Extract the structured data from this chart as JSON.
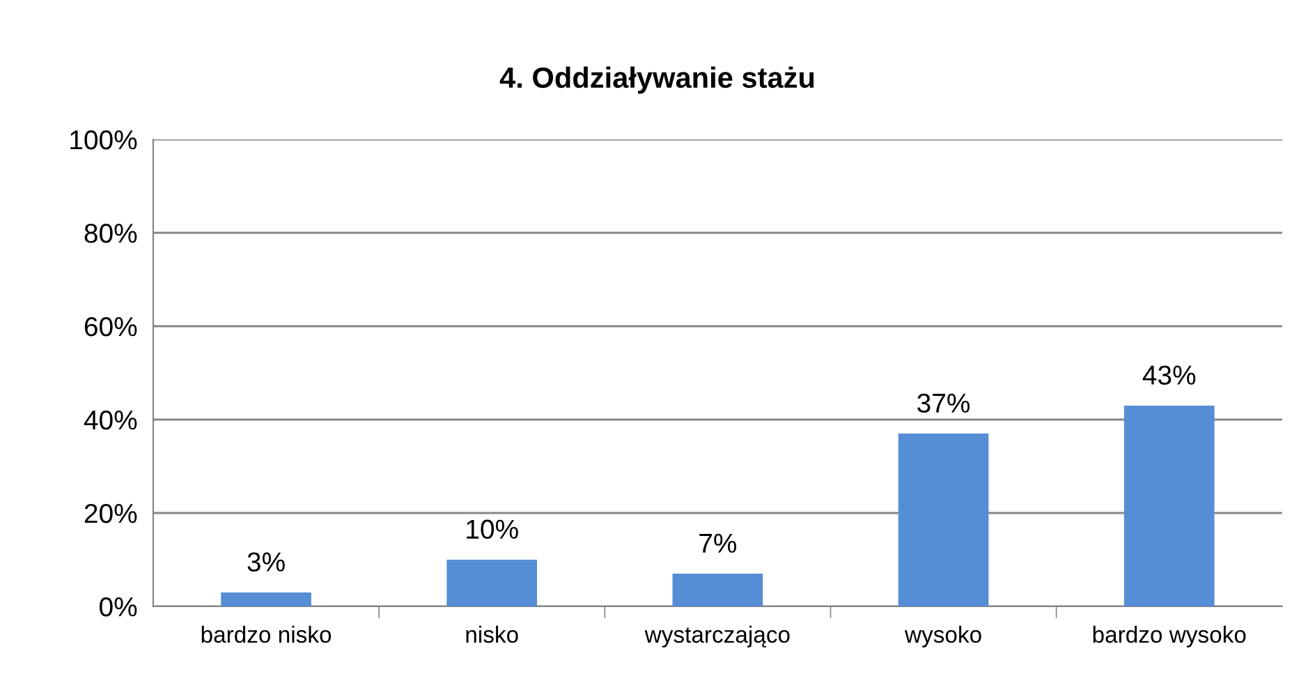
{
  "chart_data": {
    "type": "bar",
    "title": "4. Oddziaływanie stażu",
    "categories": [
      "bardzo nisko",
      "nisko",
      "wystarczająco",
      "wysoko",
      "bardzo wysoko"
    ],
    "values": [
      3,
      10,
      7,
      37,
      43
    ],
    "value_labels": [
      "3%",
      "10%",
      "7%",
      "37%",
      "43%"
    ],
    "color": "#558ed5",
    "ylim": [
      0,
      100
    ],
    "yticks": [
      {
        "value": 0,
        "label": "0%"
      },
      {
        "value": 20,
        "label": "20%"
      },
      {
        "value": 40,
        "label": "40%"
      },
      {
        "value": 60,
        "label": "60%"
      },
      {
        "value": 80,
        "label": "80%"
      },
      {
        "value": 100,
        "label": "100%"
      }
    ],
    "grid": "y",
    "legend": false
  }
}
